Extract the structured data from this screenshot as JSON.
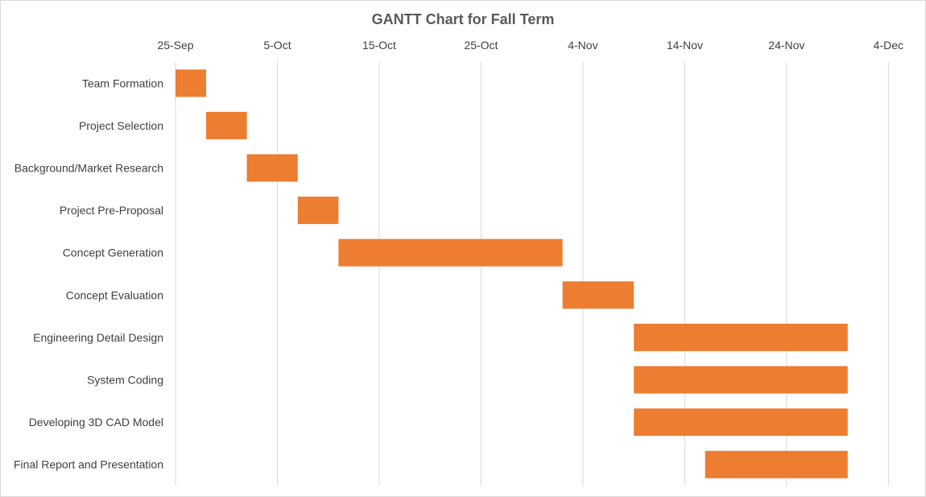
{
  "chart_data": {
    "type": "bar",
    "orientation": "horizontal-gantt",
    "title": "GANTT Chart for Fall Term",
    "xlabel": "",
    "ylabel": "",
    "xlim": [
      "2024-09-25",
      "2024-12-05"
    ],
    "x_ticks": [
      "25-Sep",
      "5-Oct",
      "15-Oct",
      "25-Oct",
      "4-Nov",
      "14-Nov",
      "24-Nov",
      "4-Dec"
    ],
    "grid": "vertical",
    "legend": "none",
    "bar_color": "#ED7D31",
    "tasks": [
      {
        "label": "Team Formation",
        "start": "2024-09-25",
        "end": "2024-09-28"
      },
      {
        "label": "Project Selection",
        "start": "2024-09-28",
        "end": "2024-10-02"
      },
      {
        "label": "Background/Market Research",
        "start": "2024-10-02",
        "end": "2024-10-07"
      },
      {
        "label": "Project Pre-Proposal",
        "start": "2024-10-07",
        "end": "2024-10-11"
      },
      {
        "label": "Concept Generation",
        "start": "2024-10-11",
        "end": "2024-11-02"
      },
      {
        "label": "Concept Evaluation",
        "start": "2024-11-02",
        "end": "2024-11-09"
      },
      {
        "label": "Engineering Detail Design",
        "start": "2024-11-09",
        "end": "2024-11-30"
      },
      {
        "label": "System Coding",
        "start": "2024-11-09",
        "end": "2024-11-30"
      },
      {
        "label": "Developing 3D CAD Model",
        "start": "2024-11-09",
        "end": "2024-11-30"
      },
      {
        "label": "Final Report and Presentation",
        "start": "2024-11-16",
        "end": "2024-11-30"
      }
    ]
  }
}
